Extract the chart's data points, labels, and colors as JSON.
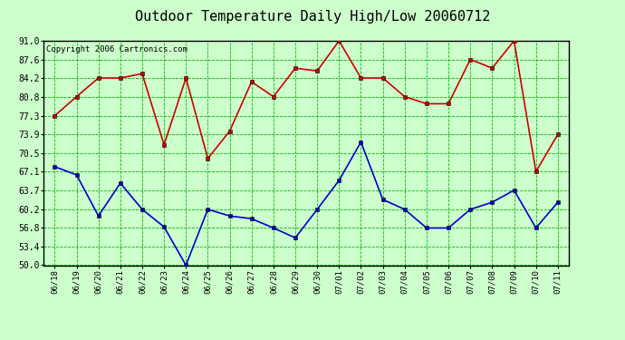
{
  "title": "Outdoor Temperature Daily High/Low 20060712",
  "copyright": "Copyright 2006 Cartronics.com",
  "x_labels": [
    "06/18",
    "06/19",
    "06/20",
    "06/21",
    "06/22",
    "06/23",
    "06/24",
    "06/25",
    "06/26",
    "06/27",
    "06/28",
    "06/29",
    "06/30",
    "07/01",
    "07/02",
    "07/03",
    "07/04",
    "07/05",
    "07/06",
    "07/07",
    "07/08",
    "07/09",
    "07/10",
    "07/11"
  ],
  "high_temps": [
    77.3,
    80.8,
    84.2,
    84.2,
    85.0,
    72.0,
    84.2,
    69.5,
    74.5,
    83.5,
    80.8,
    86.0,
    85.5,
    91.0,
    84.2,
    84.2,
    80.8,
    79.5,
    79.5,
    87.6,
    86.0,
    91.0,
    67.1,
    73.9
  ],
  "low_temps": [
    68.0,
    66.5,
    59.0,
    65.0,
    60.2,
    57.0,
    50.0,
    60.2,
    59.0,
    58.5,
    56.8,
    55.0,
    60.2,
    65.5,
    72.5,
    62.0,
    60.2,
    56.8,
    56.8,
    60.2,
    61.5,
    63.7,
    56.8,
    61.5
  ],
  "y_ticks": [
    50.0,
    53.4,
    56.8,
    60.2,
    63.7,
    67.1,
    70.5,
    73.9,
    77.3,
    80.8,
    84.2,
    87.6,
    91.0
  ],
  "y_min": 50.0,
  "y_max": 91.0,
  "bg_color": "#ccffcc",
  "plot_bg_color": "#ccffcc",
  "high_color": "#cc0000",
  "low_color": "#0000cc",
  "grid_color": "#00bb00",
  "title_fontsize": 11,
  "copyright_fontsize": 6.5
}
